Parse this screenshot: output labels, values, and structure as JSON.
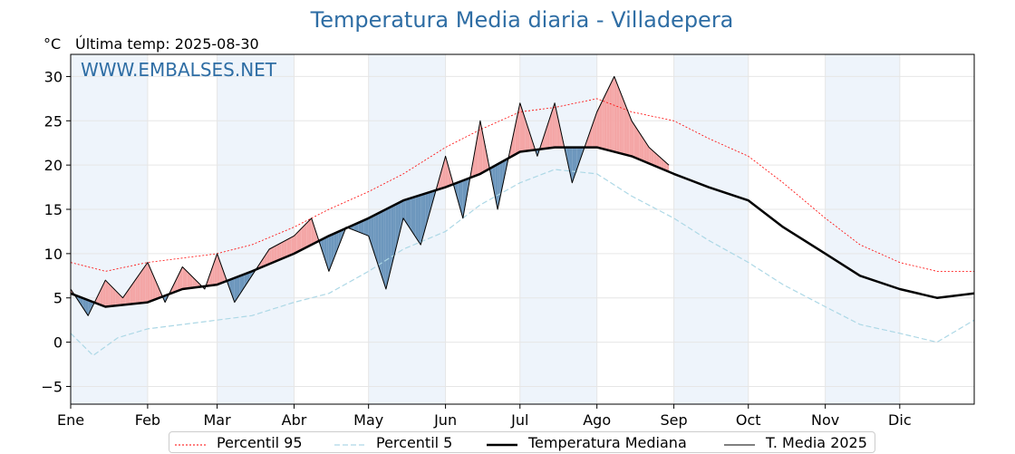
{
  "chart_data": {
    "type": "line",
    "title": "Temperatura Media diaria - Villadepera",
    "unit": "°C",
    "last_temp_label": "Última temp: 2025-08-30",
    "watermark": "WWW.EMBALSES.NET",
    "x_ticks": [
      "Ene",
      "Feb",
      "Mar",
      "Abr",
      "May",
      "Jun",
      "Jul",
      "Ago",
      "Sep",
      "Oct",
      "Nov",
      "Dic"
    ],
    "y_ticks": [
      -5,
      0,
      5,
      10,
      15,
      20,
      25,
      30
    ],
    "ylim": [
      -7,
      32.5
    ],
    "grid": true,
    "legend_position": "bottom",
    "colors": {
      "p95": "#ff0000",
      "p5": "#add8e6",
      "median": "#000000",
      "current": "#000000",
      "above_fill": "#f4a6a6",
      "below_fill": "#6d97bd",
      "band": "#eef4fb"
    },
    "series": [
      {
        "name": "Percentil 95",
        "style": "dotted",
        "points": [
          [
            1,
            9
          ],
          [
            15,
            8
          ],
          [
            32,
            9
          ],
          [
            46,
            9.5
          ],
          [
            60,
            10
          ],
          [
            74,
            11
          ],
          [
            91,
            13
          ],
          [
            105,
            15
          ],
          [
            121,
            17
          ],
          [
            135,
            19
          ],
          [
            152,
            22
          ],
          [
            166,
            24
          ],
          [
            182,
            26
          ],
          [
            196,
            26.5
          ],
          [
            213,
            27.5
          ],
          [
            227,
            26
          ],
          [
            244,
            25
          ],
          [
            258,
            23
          ],
          [
            274,
            21
          ],
          [
            288,
            18
          ],
          [
            305,
            14
          ],
          [
            319,
            11
          ],
          [
            335,
            9
          ],
          [
            350,
            8
          ],
          [
            365,
            8
          ]
        ]
      },
      {
        "name": "Percentil 5",
        "style": "dashed",
        "points": [
          [
            1,
            1
          ],
          [
            10,
            -1.5
          ],
          [
            20,
            0.5
          ],
          [
            32,
            1.5
          ],
          [
            46,
            2
          ],
          [
            60,
            2.5
          ],
          [
            74,
            3
          ],
          [
            91,
            4.5
          ],
          [
            105,
            5.5
          ],
          [
            121,
            8
          ],
          [
            135,
            10.5
          ],
          [
            152,
            12.5
          ],
          [
            166,
            15.5
          ],
          [
            182,
            18
          ],
          [
            196,
            19.5
          ],
          [
            213,
            19
          ],
          [
            227,
            16.5
          ],
          [
            244,
            14
          ],
          [
            258,
            11.5
          ],
          [
            274,
            9
          ],
          [
            288,
            6.5
          ],
          [
            305,
            4
          ],
          [
            319,
            2
          ],
          [
            335,
            1
          ],
          [
            350,
            0
          ],
          [
            365,
            2.5
          ]
        ]
      },
      {
        "name": "Temperatura Mediana",
        "style": "solid-thick",
        "points": [
          [
            1,
            5.5
          ],
          [
            15,
            4
          ],
          [
            32,
            4.5
          ],
          [
            46,
            6
          ],
          [
            60,
            6.5
          ],
          [
            74,
            8
          ],
          [
            91,
            10
          ],
          [
            105,
            12
          ],
          [
            121,
            14
          ],
          [
            135,
            16
          ],
          [
            152,
            17.5
          ],
          [
            166,
            19
          ],
          [
            182,
            21.5
          ],
          [
            196,
            22
          ],
          [
            213,
            22
          ],
          [
            227,
            21
          ],
          [
            244,
            19
          ],
          [
            258,
            17.5
          ],
          [
            274,
            16
          ],
          [
            288,
            13
          ],
          [
            305,
            10
          ],
          [
            319,
            7.5
          ],
          [
            335,
            6
          ],
          [
            350,
            5
          ],
          [
            365,
            5.5
          ]
        ]
      },
      {
        "name": "T. Media 2025",
        "style": "solid-thin",
        "points": [
          [
            1,
            6
          ],
          [
            8,
            3
          ],
          [
            15,
            7
          ],
          [
            22,
            5
          ],
          [
            32,
            9
          ],
          [
            39,
            4.5
          ],
          [
            46,
            8.5
          ],
          [
            55,
            6
          ],
          [
            60,
            10
          ],
          [
            67,
            4.5
          ],
          [
            74,
            7.5
          ],
          [
            81,
            10.5
          ],
          [
            91,
            12
          ],
          [
            98,
            14
          ],
          [
            105,
            8
          ],
          [
            112,
            13
          ],
          [
            121,
            12
          ],
          [
            128,
            6
          ],
          [
            135,
            14
          ],
          [
            142,
            11
          ],
          [
            152,
            21
          ],
          [
            159,
            14
          ],
          [
            166,
            25
          ],
          [
            173,
            15
          ],
          [
            182,
            27
          ],
          [
            189,
            21
          ],
          [
            196,
            27
          ],
          [
            203,
            18
          ],
          [
            213,
            26
          ],
          [
            220,
            30
          ],
          [
            227,
            25
          ],
          [
            234,
            22
          ],
          [
            242,
            20
          ]
        ]
      }
    ]
  }
}
